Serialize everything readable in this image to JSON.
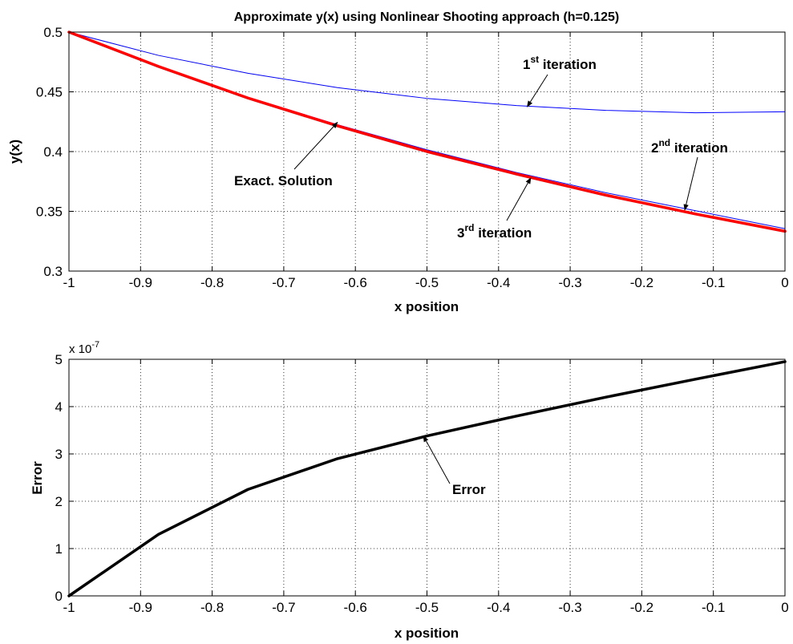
{
  "chart_data": [
    {
      "type": "line",
      "title": "Approximate y(x) using Nonlinear Shooting approach (h=0.125)",
      "xlabel": "x position",
      "ylabel": "y(x)",
      "xlim": [
        -1,
        0
      ],
      "ylim": [
        0.3,
        0.5
      ],
      "xticks": [
        "-1",
        "-0.9",
        "-0.8",
        "-0.7",
        "-0.6",
        "-0.5",
        "-0.4",
        "-0.3",
        "-0.2",
        "-0.1",
        "0"
      ],
      "yticks": [
        "0.3",
        "0.35",
        "0.4",
        "0.45",
        "0.5"
      ],
      "grid": true,
      "x": [
        -1,
        -0.875,
        -0.75,
        -0.625,
        -0.5,
        -0.375,
        -0.25,
        -0.125,
        0
      ],
      "series": [
        {
          "color": "#0000ff",
          "width": 1,
          "values": [
            0.5,
            0.4805,
            0.4655,
            0.4535,
            0.4445,
            0.4385,
            0.4345,
            0.4325,
            0.4333
          ]
        },
        {
          "color": "#0000ff",
          "width": 1,
          "values": [
            0.5,
            0.4715,
            0.4455,
            0.4225,
            0.4015,
            0.3825,
            0.3655,
            0.3505,
            0.3355
          ]
        },
        {
          "color": "#ff0000",
          "width": 3.5,
          "values": [
            0.5,
            0.4712,
            0.4448,
            0.4215,
            0.4,
            0.3812,
            0.3635,
            0.3478,
            0.3333
          ]
        }
      ],
      "annotations": [
        {
          "base": "1",
          "sup": "st",
          "text": " iteration",
          "to": [
            -0.36,
            0.4375
          ]
        },
        {
          "base": "2",
          "sup": "nd",
          "text": " iteration",
          "to": [
            -0.14,
            0.351
          ]
        },
        {
          "base": "3",
          "sup": "rd",
          "text": " iteration",
          "to": [
            -0.355,
            0.378
          ]
        },
        {
          "base": "",
          "sup": "",
          "text": "Exact. Solution",
          "to": [
            -0.625,
            0.4245
          ]
        }
      ]
    },
    {
      "type": "line",
      "title": "",
      "xlabel": "x position",
      "ylabel": "Error",
      "xlim": [
        -1,
        0
      ],
      "ylim": [
        0,
        5
      ],
      "exponent": {
        "base": "x 10",
        "sup": "-7"
      },
      "xticks": [
        "-1",
        "-0.9",
        "-0.8",
        "-0.7",
        "-0.6",
        "-0.5",
        "-0.4",
        "-0.3",
        "-0.2",
        "-0.1",
        "0"
      ],
      "yticks": [
        "0",
        "1",
        "2",
        "3",
        "4",
        "5"
      ],
      "grid": true,
      "x": [
        -1,
        -0.875,
        -0.75,
        -0.625,
        -0.5,
        -0.375,
        -0.25,
        -0.125,
        0
      ],
      "series": [
        {
          "color": "#000000",
          "width": 3.5,
          "values": [
            0,
            1.3,
            2.25,
            2.9,
            3.38,
            3.8,
            4.2,
            4.58,
            4.95
          ]
        }
      ],
      "annotations": [
        {
          "base": "",
          "sup": "",
          "text": "Error",
          "to": [
            -0.505,
            3.38
          ]
        }
      ]
    }
  ]
}
